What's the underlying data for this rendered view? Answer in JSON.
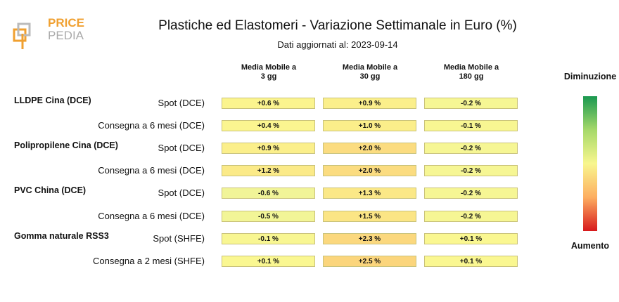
{
  "header": {
    "logo": [
      "PRICE",
      "PEDIA"
    ],
    "title": "Plastiche ed Elastomeri - Variazione Settimanale in Euro (%)",
    "subtitle": "Dati aggiornati al: 2023-09-14"
  },
  "columns": [
    [
      "Media Mobile a",
      "3 gg"
    ],
    [
      "Media Mobile a",
      "30 gg"
    ],
    [
      "Media Mobile a",
      "180 gg"
    ]
  ],
  "groups": [
    {
      "name": "LLDPE Cina (DCE)",
      "rows": [
        {
          "label": "Spot (DCE)",
          "cells": [
            {
              "text": "+0.6 %",
              "color": "#fbf48e"
            },
            {
              "text": "+0.9 %",
              "color": "#fbef8b"
            },
            {
              "text": "-0.2 %",
              "color": "#f6f694"
            }
          ]
        },
        {
          "label": "Consegna a 6 mesi (DCE)",
          "cells": [
            {
              "text": "+0.4 %",
              "color": "#fbf590"
            },
            {
              "text": "+1.0 %",
              "color": "#fbee8a"
            },
            {
              "text": "-0.1 %",
              "color": "#f8f692"
            }
          ]
        }
      ]
    },
    {
      "name": "Polipropilene Cina (DCE)",
      "rows": [
        {
          "label": "Spot (DCE)",
          "cells": [
            {
              "text": "+0.9 %",
              "color": "#fbef8b"
            },
            {
              "text": "+2.0 %",
              "color": "#fbdc80"
            },
            {
              "text": "-0.2 %",
              "color": "#f6f694"
            }
          ]
        },
        {
          "label": "Consegna a 6 mesi (DCE)",
          "cells": [
            {
              "text": "+1.2 %",
              "color": "#fbea88"
            },
            {
              "text": "+2.0 %",
              "color": "#fbdc80"
            },
            {
              "text": "-0.2 %",
              "color": "#f6f694"
            }
          ]
        }
      ]
    },
    {
      "name": "PVC China (DCE)",
      "rows": [
        {
          "label": "Spot (DCE)",
          "cells": [
            {
              "text": "-0.6 %",
              "color": "#f1f498"
            },
            {
              "text": "+1.3 %",
              "color": "#fbe887"
            },
            {
              "text": "-0.2 %",
              "color": "#f6f694"
            }
          ]
        },
        {
          "label": "Consegna a 6 mesi (DCE)",
          "cells": [
            {
              "text": "-0.5 %",
              "color": "#f2f597"
            },
            {
              "text": "+1.5 %",
              "color": "#fbe585"
            },
            {
              "text": "-0.2 %",
              "color": "#f6f694"
            }
          ]
        }
      ]
    },
    {
      "name": "Gomma naturale RSS3",
      "rows": [
        {
          "label": "Spot (SHFE)",
          "cells": [
            {
              "text": "-0.1 %",
              "color": "#f8f692"
            },
            {
              "text": "+2.3 %",
              "color": "#fbd87e"
            },
            {
              "text": "+0.1 %",
              "color": "#faf791"
            }
          ]
        },
        {
          "label": "Consegna a 2 mesi (SHFE)",
          "cells": [
            {
              "text": "+0.1 %",
              "color": "#faf791"
            },
            {
              "text": "+2.5 %",
              "color": "#fbd57c"
            },
            {
              "text": "+0.1 %",
              "color": "#faf791"
            }
          ]
        }
      ]
    }
  ],
  "legend": {
    "top": "Diminuzione",
    "bottom": "Aumento",
    "colors": [
      "#1a9850",
      "#a6d96a",
      "#f8f68e",
      "#fdae61",
      "#d7191c"
    ]
  }
}
